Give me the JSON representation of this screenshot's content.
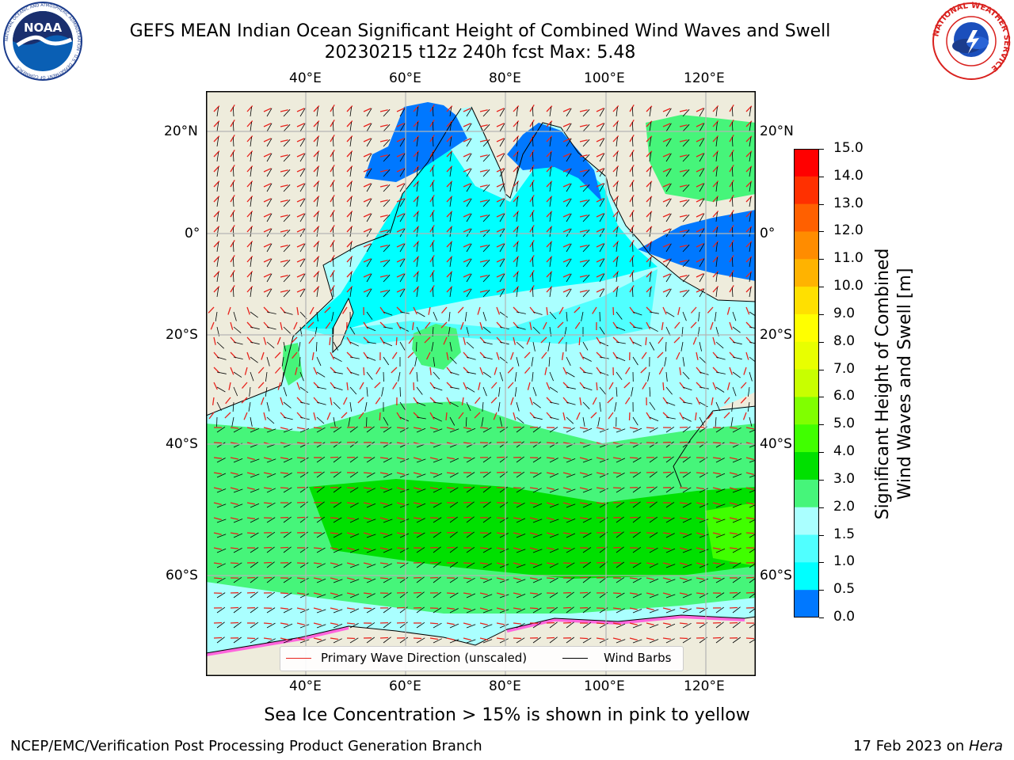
{
  "header": {
    "title_line1": "GEFS MEAN Indian Ocean Significant Height of Combined Wind Waves and Swell",
    "title_line2": "20230215 t12z 240h fcst   Max: 5.48"
  },
  "logos": {
    "noaa_text": "NOAA",
    "noaa_ring_text": "NATIONAL OCEANIC AND ATMOSPHERIC ADMINISTRATION · U.S. DEPARTMENT OF COMMERCE",
    "nws_ring_text": "NATIONAL WEATHER SERVICE"
  },
  "map": {
    "lon_ticks_top": [
      "40°E",
      "60°E",
      "80°E",
      "100°E",
      "120°E"
    ],
    "lon_ticks_bottom": [
      "40°E",
      "60°E",
      "80°E",
      "100°E",
      "120°E"
    ],
    "lat_ticks_left": [
      "20°N",
      "0°",
      "20°S",
      "40°S",
      "60°S"
    ],
    "lat_ticks_right": [
      "20°N",
      "0°",
      "20°S",
      "40°S",
      "60°S"
    ],
    "grid": true,
    "colors": {
      "land": "#eeecdc",
      "grid": "#b4b4b4",
      "wave_arrow": "#e8231c",
      "wind_barb": "#000000"
    }
  },
  "legend": {
    "primary_wave_direction": "Primary Wave Direction (unscaled)",
    "wind_barbs": "Wind Barbs"
  },
  "colorbar": {
    "label_line1": "Significant Height of Combined",
    "label_line2": "Wind Waves and Swell [m]",
    "ticks": [
      "15.0",
      "14.0",
      "13.0",
      "12.0",
      "11.0",
      "10.0",
      "9.0",
      "8.0",
      "7.0",
      "6.0",
      "5.0",
      "4.0",
      "3.0",
      "2.0",
      "1.5",
      "1.0",
      "0.5",
      "0.0"
    ],
    "colors": [
      "#ff0000",
      "#ff3000",
      "#ff6000",
      "#ff8c00",
      "#ffb300",
      "#ffe000",
      "#ffff00",
      "#e8ff00",
      "#c8ff00",
      "#80ff00",
      "#40ff00",
      "#00e000",
      "#46f57a",
      "#aaffff",
      "#50ffff",
      "#00ffff",
      "#0078ff",
      "#0000ff"
    ]
  },
  "footer": {
    "sea_ice_note": "Sea Ice Concentration > 15% is shown in pink to yellow",
    "credit": "NCEP/EMC/Verification Post Processing Product Generation Branch",
    "date_prefix": "17 Feb 2023 on ",
    "host": "Hera"
  }
}
